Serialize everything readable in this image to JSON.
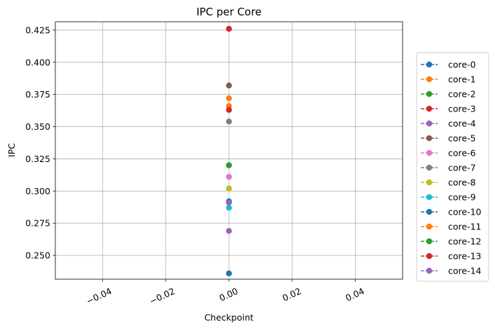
{
  "chart_data": {
    "type": "line",
    "title": "IPC per Core",
    "xlabel": "Checkpoint",
    "ylabel": "IPC",
    "xlim": [
      -0.055,
      0.055
    ],
    "ylim": [
      0.2315,
      0.4315
    ],
    "xticks": [
      -0.04,
      -0.02,
      0.0,
      0.02,
      0.04
    ],
    "xtick_labels": [
      "−0.04",
      "−0.02",
      "0.00",
      "0.02",
      "0.04"
    ],
    "yticks": [
      0.25,
      0.275,
      0.3,
      0.325,
      0.35,
      0.375,
      0.4,
      0.425
    ],
    "ytick_labels": [
      "0.250",
      "0.275",
      "0.300",
      "0.325",
      "0.350",
      "0.375",
      "0.400",
      "0.425"
    ],
    "grid": true,
    "legend_position": "right",
    "line_style": "dashed",
    "marker": "circle",
    "x": [
      0
    ],
    "series": [
      {
        "name": "core-0",
        "values": [
          0.236
        ],
        "color": "#1f77b4"
      },
      {
        "name": "core-1",
        "values": [
          0.366
        ],
        "color": "#ff7f0e"
      },
      {
        "name": "core-2",
        "values": [
          0.32
        ],
        "color": "#2ca02c"
      },
      {
        "name": "core-3",
        "values": [
          0.363
        ],
        "color": "#d62728"
      },
      {
        "name": "core-4",
        "values": [
          0.269
        ],
        "color": "#9467bd"
      },
      {
        "name": "core-5",
        "values": [
          0.382
        ],
        "color": "#8c564b"
      },
      {
        "name": "core-6",
        "values": [
          0.311
        ],
        "color": "#e377c2"
      },
      {
        "name": "core-7",
        "values": [
          0.354
        ],
        "color": "#7f7f7f"
      },
      {
        "name": "core-8",
        "values": [
          0.302
        ],
        "color": "#bcbd22"
      },
      {
        "name": "core-9",
        "values": [
          0.287
        ],
        "color": "#17becf"
      },
      {
        "name": "core-10",
        "values": [
          0.292
        ],
        "color": "#1f77b4"
      },
      {
        "name": "core-11",
        "values": [
          0.372
        ],
        "color": "#ff7f0e"
      },
      {
        "name": "core-12",
        "values": [
          0.32
        ],
        "color": "#2ca02c"
      },
      {
        "name": "core-13",
        "values": [
          0.426
        ],
        "color": "#d62728"
      },
      {
        "name": "core-14",
        "values": [
          0.291
        ],
        "color": "#9467bd"
      }
    ]
  }
}
